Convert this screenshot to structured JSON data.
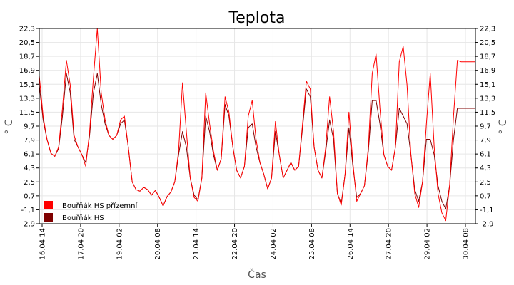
{
  "chart_data": {
    "type": "line",
    "title": "Teplota",
    "xlabel": "Čas",
    "ylabel": "° C",
    "ylabel_right": "° C",
    "x_tick_labels": [
      "16.04 14",
      "17.04 20",
      "19.04 02",
      "20.04 08",
      "21.04 14",
      "22.04 20",
      "24.04 02",
      "25.04 08",
      "26.04 14",
      "27.04 20",
      "29.04 02",
      "30.04 08"
    ],
    "y_ticks": [
      22.3,
      20.5,
      18.7,
      16.9,
      15.1,
      13.3,
      11.5,
      9.7,
      7.9,
      6.1,
      4.3,
      2.5,
      0.7,
      -1.1,
      -2.9
    ],
    "y_tick_labels": [
      "22,3",
      "20,5",
      "18,7",
      "16,9",
      "15,1",
      "13,3",
      "11,5",
      "9,7",
      "7,9",
      "6,1",
      "4,3",
      "2,5",
      "0,7",
      "-1,1",
      "-2,9"
    ],
    "ylim": [
      -2.9,
      22.3
    ],
    "xlim_hours": [
      0,
      338
    ],
    "grid": true,
    "legend_position": "bottom-left",
    "series": [
      {
        "name": "Bouřňák HS přízemní",
        "color": "#ff0000",
        "x": [
          0,
          3,
          6,
          9,
          12,
          15,
          18,
          21,
          24,
          27,
          30,
          33,
          36,
          39,
          42,
          45,
          48,
          51,
          54,
          57,
          60,
          63,
          66,
          69,
          72,
          75,
          78,
          81,
          84,
          87,
          90,
          93,
          96,
          99,
          102,
          105,
          108,
          111,
          114,
          117,
          120,
          123,
          126,
          129,
          132,
          135,
          138,
          141,
          144,
          147,
          150,
          153,
          156,
          159,
          162,
          165,
          168,
          171,
          174,
          177,
          180,
          183,
          186,
          189,
          192,
          195,
          198,
          201,
          204,
          207,
          210,
          213,
          216,
          219,
          222,
          225,
          228,
          231,
          234,
          237,
          240,
          243,
          246,
          249,
          252,
          255,
          258,
          261,
          264,
          267,
          270,
          273,
          276,
          279,
          282,
          285,
          288,
          291,
          294,
          297,
          300,
          303,
          306,
          309,
          312,
          315,
          318,
          321,
          324,
          327,
          330,
          333,
          336,
          338
        ],
        "y": [
          16.2,
          11.0,
          8.0,
          6.2,
          5.8,
          7.0,
          12.0,
          18.2,
          15.0,
          8.5,
          7.0,
          6.0,
          4.5,
          9.0,
          16.0,
          22.3,
          14.0,
          10.5,
          8.5,
          8.0,
          8.5,
          10.5,
          11.0,
          7.0,
          2.5,
          1.5,
          1.3,
          1.8,
          1.5,
          0.8,
          1.4,
          0.5,
          -0.6,
          0.6,
          1.2,
          2.5,
          6.5,
          15.3,
          9.0,
          3.0,
          0.5,
          0.0,
          3.0,
          14.0,
          10.0,
          6.5,
          4.0,
          5.5,
          13.5,
          11.5,
          7.0,
          4.0,
          3.0,
          4.5,
          11.0,
          13.0,
          8.0,
          5.0,
          3.5,
          1.6,
          3.0,
          10.3,
          6.0,
          3.0,
          4.0,
          5.0,
          4.0,
          4.5,
          10.0,
          15.5,
          14.5,
          7.0,
          4.0,
          3.0,
          7.0,
          13.5,
          9.0,
          1.0,
          -0.5,
          3.5,
          11.5,
          5.0,
          0.0,
          1.0,
          2.0,
          7.0,
          16.5,
          19.0,
          12.0,
          6.0,
          4.5,
          4.0,
          7.0,
          18.0,
          20.0,
          15.0,
          6.0,
          1.0,
          -0.8,
          2.5,
          10.0,
          16.5,
          7.0,
          1.0,
          -1.5,
          -2.5,
          2.0,
          11.0,
          18.2,
          18.0,
          18.0,
          18.0,
          18.0,
          18.0
        ]
      },
      {
        "name": "Bouřňák HS",
        "color": "#7f0000",
        "x": [
          0,
          3,
          6,
          9,
          12,
          15,
          18,
          21,
          24,
          27,
          30,
          33,
          36,
          39,
          42,
          45,
          48,
          51,
          54,
          57,
          60,
          63,
          66,
          69,
          72,
          75,
          78,
          81,
          84,
          87,
          90,
          93,
          96,
          99,
          102,
          105,
          108,
          111,
          114,
          117,
          120,
          123,
          126,
          129,
          132,
          135,
          138,
          141,
          144,
          147,
          150,
          153,
          156,
          159,
          162,
          165,
          168,
          171,
          174,
          177,
          180,
          183,
          186,
          189,
          192,
          195,
          198,
          201,
          204,
          207,
          210,
          213,
          216,
          219,
          222,
          225,
          228,
          231,
          234,
          237,
          240,
          243,
          246,
          249,
          252,
          255,
          258,
          261,
          264,
          267,
          270,
          273,
          276,
          279,
          282,
          285,
          288,
          291,
          294,
          297,
          300,
          303,
          306,
          309,
          312,
          315,
          318,
          321,
          324,
          327,
          330,
          333,
          336,
          338
        ],
        "y": [
          15.0,
          10.5,
          8.0,
          6.2,
          5.8,
          6.8,
          11.0,
          16.5,
          14.0,
          8.0,
          7.0,
          6.0,
          5.0,
          8.5,
          14.0,
          16.5,
          12.5,
          10.0,
          8.5,
          8.0,
          8.5,
          10.0,
          10.5,
          7.0,
          2.5,
          1.5,
          1.3,
          1.8,
          1.5,
          0.8,
          1.4,
          0.5,
          -0.6,
          0.6,
          1.2,
          2.5,
          6.0,
          9.0,
          7.0,
          3.0,
          0.8,
          0.2,
          3.0,
          11.0,
          9.0,
          6.0,
          4.0,
          5.5,
          12.5,
          11.0,
          7.0,
          4.0,
          3.0,
          4.5,
          9.5,
          10.0,
          7.0,
          5.0,
          3.5,
          1.6,
          3.0,
          9.0,
          6.0,
          3.0,
          4.0,
          5.0,
          4.0,
          4.5,
          9.5,
          14.5,
          13.5,
          7.0,
          4.0,
          3.0,
          6.5,
          10.5,
          8.0,
          1.0,
          -0.3,
          3.5,
          9.5,
          4.5,
          0.5,
          1.0,
          2.0,
          6.5,
          13.0,
          13.0,
          10.0,
          6.0,
          4.5,
          4.0,
          7.0,
          12.0,
          11.0,
          10.0,
          6.0,
          1.5,
          0.0,
          2.5,
          8.0,
          8.0,
          6.0,
          2.0,
          0.0,
          -1.0,
          2.0,
          8.0,
          12.0,
          12.0,
          12.0,
          12.0,
          12.0,
          12.0
        ]
      }
    ]
  }
}
